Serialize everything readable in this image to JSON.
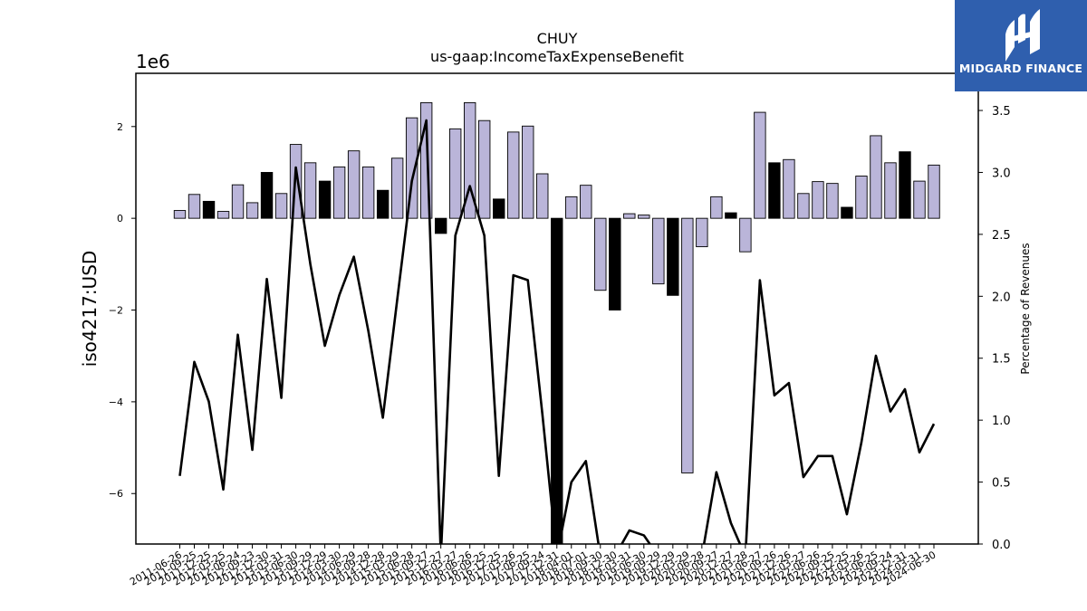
{
  "brand": {
    "name": "MIDGARD FINANCE",
    "bg_color": "#2f5fae"
  },
  "chart_data": {
    "type": "bar",
    "title": "CHUY",
    "subtitle": "us-gaap:IncomeTaxExpenseBenefit",
    "ylabel": "iso4217:USD",
    "y_offset_label": "1e6",
    "y2label": "Percentage of Revenues",
    "ylim": [
      -7.1,
      3.16
    ],
    "y2lim": [
      0.0,
      3.8
    ],
    "yticks": [
      -6,
      -4,
      -2,
      0,
      2
    ],
    "y2ticks": [
      0.0,
      0.5,
      1.0,
      1.5,
      2.0,
      2.5,
      3.0,
      3.5
    ],
    "y2tick_labels": [
      "0.0",
      "0.5",
      "1.0",
      "1.5",
      "2.0",
      "2.5",
      "3.0",
      "3.5"
    ],
    "colors": {
      "regular": "#bab5d9",
      "highlight": "#000000",
      "line": "#000000"
    },
    "categories": [
      "2011-06-26",
      "2011-09-25",
      "2011-12-25",
      "2012-03-25",
      "2012-06-24",
      "2012-09-23",
      "2012-12-30",
      "2013-03-31",
      "2013-06-30",
      "2013-09-29",
      "2013-12-29",
      "2014-03-30",
      "2014-06-29",
      "2014-09-28",
      "2014-12-28",
      "2015-03-29",
      "2015-06-28",
      "2015-09-27",
      "2015-12-27",
      "2016-03-27",
      "2016-06-26",
      "2016-09-25",
      "2016-12-25",
      "2017-03-26",
      "2017-06-25",
      "2017-09-24",
      "2017-12-31",
      "2018-04-01",
      "2018-07-01",
      "2018-09-30",
      "2018-12-30",
      "2019-03-31",
      "2019-06-30",
      "2019-09-29",
      "2019-12-29",
      "2020-03-29",
      "2020-06-28",
      "2020-09-27",
      "2020-12-27",
      "2021-03-28",
      "2021-06-27",
      "2021-09-26",
      "2021-12-26",
      "2022-03-27",
      "2022-06-26",
      "2022-09-25",
      "2022-12-25",
      "2023-03-26",
      "2023-06-25",
      "2023-09-24",
      "2023-12-31",
      "2024-03-31",
      "2024-06-30"
    ],
    "series": [
      {
        "values": [
          0.17,
          0.52,
          0.37,
          0.15,
          0.73,
          0.34,
          1.0,
          0.54,
          1.61,
          1.21,
          0.81,
          1.12,
          1.47,
          1.12,
          0.61,
          1.31,
          2.19,
          2.52,
          -0.33,
          1.95,
          2.52,
          2.13,
          0.42,
          1.88,
          2.01,
          0.97,
          -7.2,
          0.47,
          0.72,
          -1.57,
          -2.0,
          0.1,
          0.07,
          -1.43,
          -1.68,
          -5.55,
          -0.62,
          0.47,
          0.12,
          -0.73,
          2.31,
          1.21,
          1.28,
          0.54,
          0.8,
          0.76,
          0.24,
          0.92,
          1.8,
          1.21,
          1.45,
          0.81,
          1.16
        ],
        "highlight": [
          false,
          false,
          true,
          false,
          false,
          false,
          true,
          false,
          false,
          false,
          true,
          false,
          false,
          false,
          true,
          false,
          false,
          false,
          true,
          false,
          false,
          false,
          true,
          false,
          false,
          false,
          true,
          false,
          false,
          false,
          true,
          false,
          false,
          false,
          true,
          false,
          false,
          false,
          true,
          false,
          false,
          true,
          false,
          false,
          false,
          false,
          true,
          false,
          false,
          false,
          true,
          false,
          false
        ]
      },
      {
        "axis": "secondary",
        "type": "line",
        "values": [
          0.55,
          1.47,
          1.15,
          0.44,
          1.69,
          0.76,
          2.14,
          1.18,
          3.04,
          2.26,
          1.6,
          2.01,
          2.32,
          1.72,
          1.02,
          1.98,
          2.93,
          3.42,
          -0.1,
          2.49,
          2.89,
          2.49,
          0.55,
          2.17,
          2.13,
          1.05,
          -0.1,
          0.5,
          0.67,
          -0.1,
          -0.1,
          0.11,
          0.07,
          -0.1,
          -0.1,
          -0.1,
          -0.1,
          0.58,
          0.17,
          -0.1,
          2.13,
          1.2,
          1.3,
          0.54,
          0.71,
          0.71,
          0.24,
          0.82,
          1.52,
          1.07,
          1.25,
          0.74,
          0.97
        ]
      }
    ]
  }
}
